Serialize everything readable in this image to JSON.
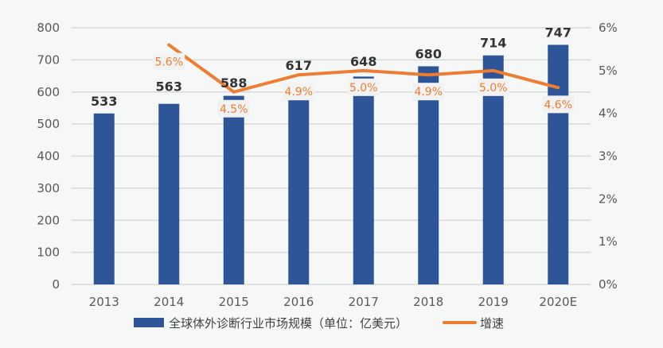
{
  "chart_data": {
    "type": "bar+line",
    "categories": [
      "2013",
      "2014",
      "2015",
      "2016",
      "2017",
      "2018",
      "2019",
      "2020E"
    ],
    "series": [
      {
        "name": "全球体外诊断行业市场规模（单位：亿美元）",
        "type": "bar",
        "axis": "left",
        "color": "#2e5597",
        "values": [
          533,
          563,
          588,
          617,
          648,
          680,
          714,
          747
        ],
        "labels": [
          "533",
          "563",
          "588",
          "617",
          "648",
          "680",
          "714",
          "747"
        ]
      },
      {
        "name": "增速",
        "type": "line",
        "axis": "right",
        "color": "#ed7d31",
        "values": [
          null,
          5.6,
          4.5,
          4.9,
          5.0,
          4.9,
          5.0,
          4.6
        ],
        "labels": [
          "",
          "5.6%",
          "4.5%",
          "4.9%",
          "5.0%",
          "4.9%",
          "5.0%",
          "4.6%"
        ]
      }
    ],
    "y_left": {
      "min": 0,
      "max": 800,
      "ticks": [
        "0",
        "100",
        "200",
        "300",
        "400",
        "500",
        "600",
        "700",
        "800"
      ]
    },
    "y_right": {
      "min": 0,
      "max": 6,
      "ticks": [
        "0%",
        "1%",
        "2%",
        "3%",
        "4%",
        "5%",
        "6%"
      ]
    },
    "grid": true,
    "legend": "bottom"
  }
}
